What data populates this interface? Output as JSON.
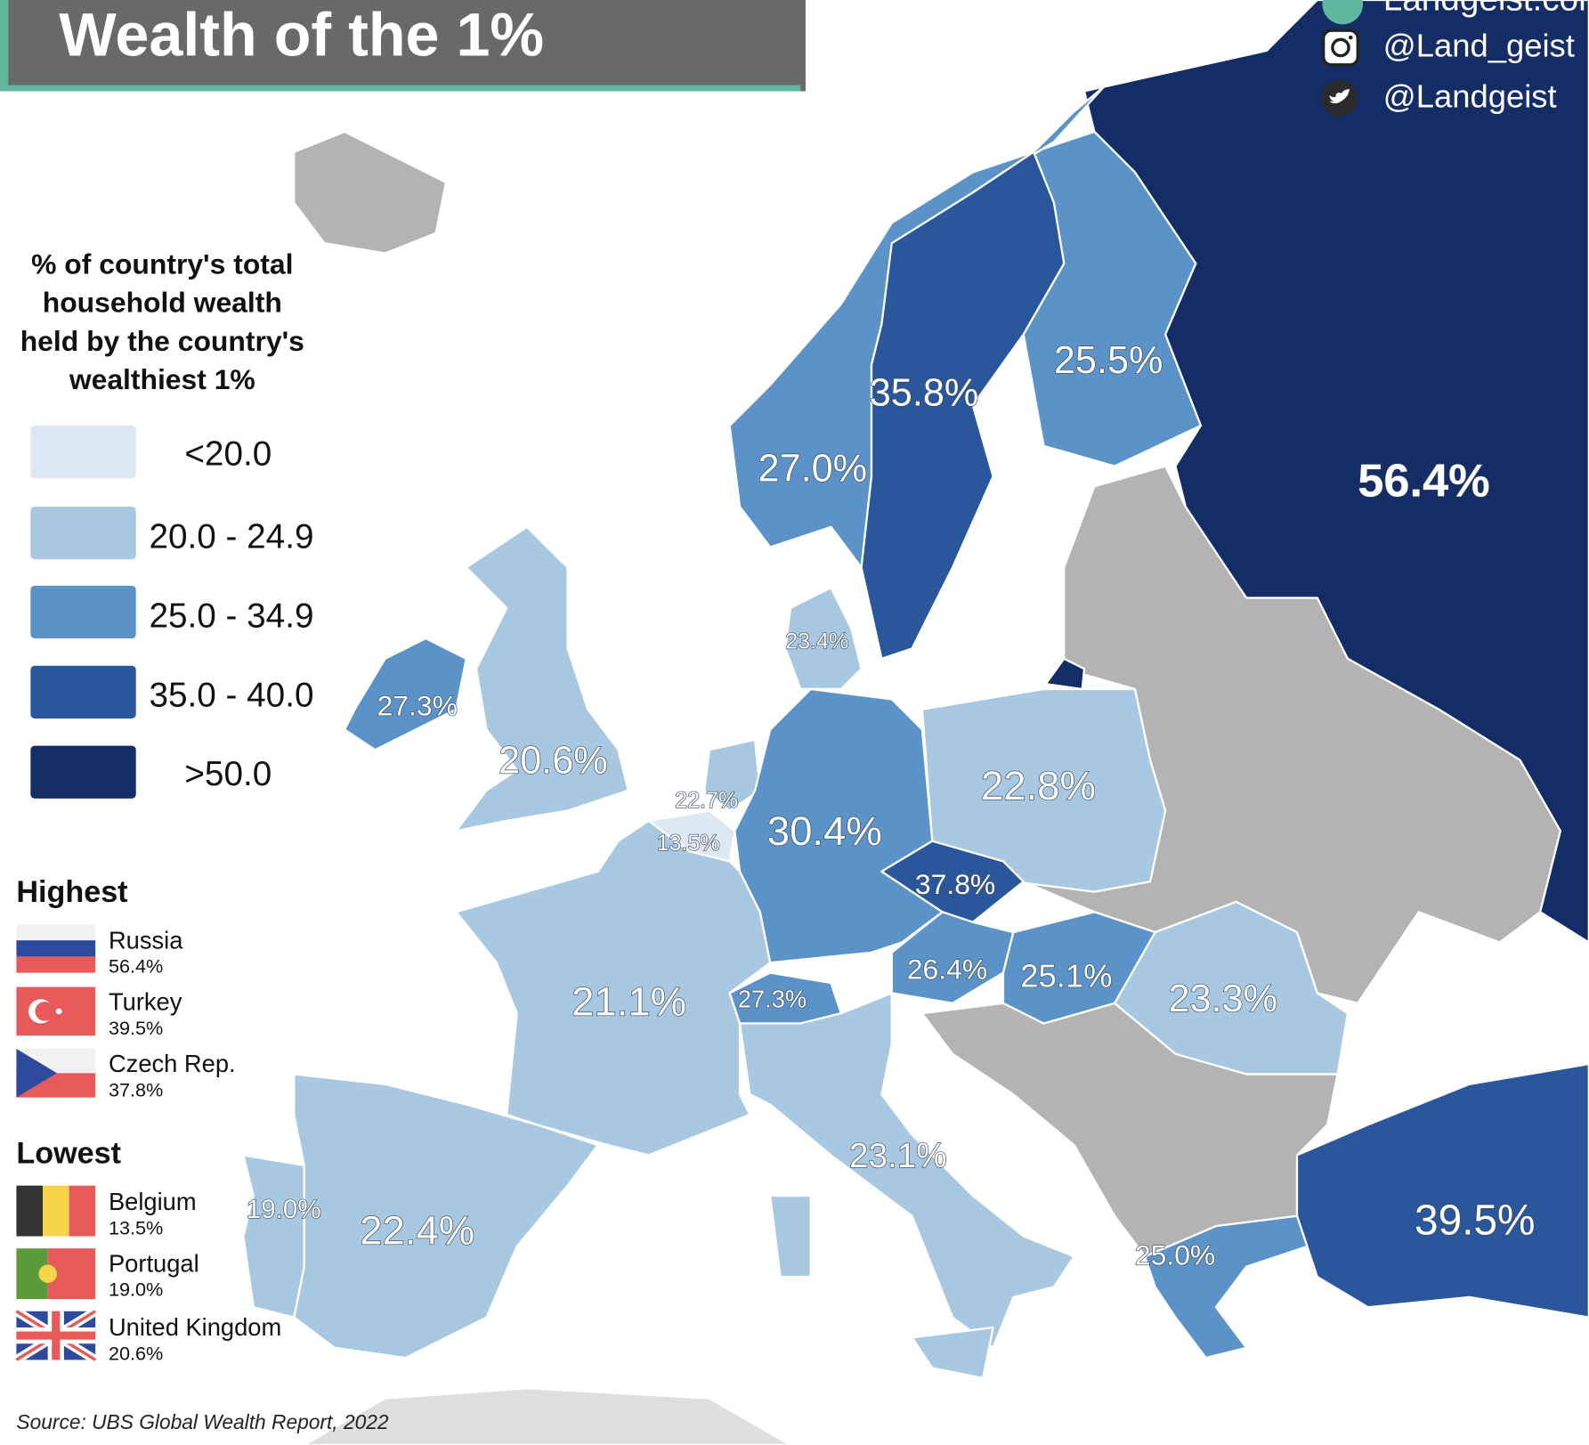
{
  "title": "Wealth of the 1%",
  "branding": {
    "website": "Landgeist.com",
    "instagram": "@Land_geist",
    "twitter": "@Landgeist"
  },
  "legend": {
    "title_lines": [
      "% of country's total",
      "household wealth",
      "held by the country's",
      "wealthiest 1%"
    ],
    "bins": [
      {
        "label": "<20.0",
        "color": "#dce8f4"
      },
      {
        "label": "20.0 - 24.9",
        "color": "#a8c8e2"
      },
      {
        "label": "25.0 - 34.9",
        "color": "#5b93c9"
      },
      {
        "label": "35.0 - 40.0",
        "color": "#2a569b"
      },
      {
        "label": ">50.0",
        "color": "#142d66"
      }
    ],
    "no_data_color": "#b3b3b3"
  },
  "highest": {
    "heading": "Highest",
    "items": [
      {
        "country": "Russia",
        "value": "56.4%"
      },
      {
        "country": "Turkey",
        "value": "39.5%"
      },
      {
        "country": "Czech Rep.",
        "value": "37.8%"
      }
    ]
  },
  "lowest": {
    "heading": "Lowest",
    "items": [
      {
        "country": "Belgium",
        "value": "13.5%"
      },
      {
        "country": "Portugal",
        "value": "19.0%"
      },
      {
        "country": "United Kingdom",
        "value": "20.6%"
      }
    ]
  },
  "countries": {
    "russia": "56.4%",
    "finland": "25.5%",
    "sweden": "35.8%",
    "norway": "27.0%",
    "denmark": "23.4%",
    "ireland": "27.3%",
    "uk": "20.6%",
    "netherlands": "22.7%",
    "belgium": "13.5%",
    "germany": "30.4%",
    "poland": "22.8%",
    "czech": "37.8%",
    "austria": "26.4%",
    "hungary": "25.1%",
    "romania": "23.3%",
    "france": "21.1%",
    "switzerland": "27.3%",
    "italy": "23.1%",
    "portugal": "19.0%",
    "spain": "22.4%",
    "greece": "25.0%",
    "turkey": "39.5%"
  },
  "source": "Source: UBS Global Wealth Report, 2022"
}
